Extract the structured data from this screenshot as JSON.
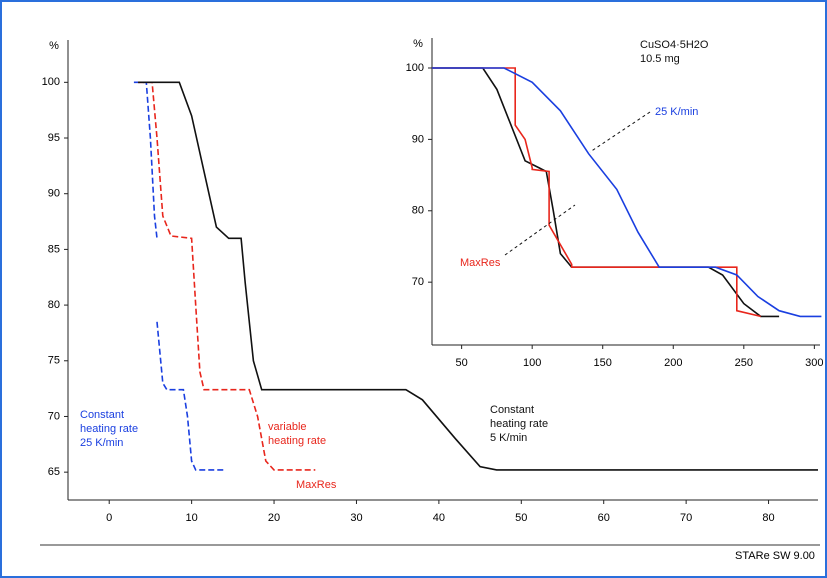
{
  "chart_data": [
    {
      "type": "line",
      "ylabel": "%",
      "footer": "STARe SW 9.00",
      "xlim": [
        -5,
        86
      ],
      "xticks": [
        0,
        10,
        20,
        30,
        40,
        50,
        60,
        70,
        80
      ],
      "ylim": [
        62.5,
        103.8
      ],
      "yticks": [
        100,
        95,
        90,
        85,
        80,
        75,
        70,
        65
      ],
      "series": [
        {
          "name": "25 K/min",
          "color": "#1a3fe0",
          "dash": true,
          "x": [
            3,
            4.5,
            5,
            5.5,
            5.8,
            5.8,
            5.8,
            6.5,
            7,
            9,
            9.5,
            10,
            10.5,
            14
          ],
          "values": [
            100,
            100,
            95,
            88,
            86,
            null,
            78.5,
            73,
            72.4,
            72.4,
            70,
            66,
            65.2,
            65.2
          ]
        },
        {
          "name": "MaxRes",
          "color": "#e8261c",
          "dash": true,
          "x": [
            3.5,
            5.2,
            5.8,
            6.5,
            7.5,
            10,
            10.5,
            11,
            11.5,
            17,
            18,
            19,
            20,
            25
          ],
          "values": [
            100,
            100,
            95,
            88,
            86.2,
            86,
            80,
            74,
            72.4,
            72.4,
            70,
            66,
            65.2,
            65.2
          ]
        },
        {
          "name": "5 K/min",
          "color": "#111111",
          "dash": false,
          "x": [
            3.5,
            8.5,
            10,
            11.5,
            13,
            14.5,
            16,
            16.5,
            17.5,
            18.5,
            36,
            38,
            42,
            45,
            47,
            86
          ],
          "values": [
            100,
            100,
            97,
            92,
            87,
            86,
            86,
            82,
            75,
            72.4,
            72.4,
            71.5,
            68,
            65.5,
            65.2,
            65.2
          ]
        }
      ],
      "annotations": [
        {
          "lines": [
            "Constant",
            "heating rate",
            "25 K/min"
          ],
          "color": "#1a3fe0"
        },
        {
          "lines": [
            "variable",
            "heating rate"
          ],
          "color": "#e8261c"
        },
        {
          "lines": [
            "MaxRes"
          ],
          "color": "#e8261c"
        },
        {
          "lines": [
            "Constant",
            "heating rate",
            "5 K/min"
          ],
          "color": "#111111"
        }
      ]
    },
    {
      "type": "line",
      "ylabel": "%",
      "xlim": [
        29,
        304
      ],
      "xticks": [
        50,
        100,
        150,
        200,
        250,
        300
      ],
      "ylim": [
        61.2,
        104.2
      ],
      "yticks": [
        100,
        90,
        80,
        70
      ],
      "series": [
        {
          "name": "5 K/min",
          "color": "#111111",
          "dash": false,
          "x": [
            29,
            65,
            75,
            85,
            95,
            105,
            110,
            115,
            120,
            128,
            225,
            235,
            250,
            262,
            275
          ],
          "values": [
            100,
            100,
            97,
            92,
            87,
            86,
            85.5,
            80,
            74,
            72.1,
            72.1,
            71,
            67,
            65.2,
            65.2
          ]
        },
        {
          "name": "MaxRes",
          "color": "#e8261c",
          "dash": false,
          "x": [
            29,
            88,
            88,
            95,
            100,
            100,
            112,
            112,
            128,
            128,
            245,
            245,
            262
          ],
          "values": [
            100,
            100,
            92,
            90,
            86,
            85.8,
            85.5,
            78,
            72.5,
            72.1,
            72.1,
            66,
            65.2
          ]
        },
        {
          "name": "25 K/min",
          "color": "#1a3fe0",
          "dash": false,
          "x": [
            29,
            80,
            100,
            120,
            140,
            160,
            175,
            190,
            230,
            245,
            260,
            275,
            290,
            305
          ],
          "values": [
            100,
            100,
            98,
            94,
            88,
            83,
            77,
            72.1,
            72.1,
            71,
            68,
            66,
            65.2,
            65.2
          ]
        }
      ],
      "annotations": [
        {
          "lines": [
            "CuSO4·5H2O",
            "10.5 mg"
          ],
          "color": "#111111"
        },
        {
          "lines": [
            "25 K/min"
          ],
          "color": "#1a3fe0"
        },
        {
          "lines": [
            "MaxRes"
          ],
          "color": "#e8261c"
        }
      ]
    }
  ]
}
